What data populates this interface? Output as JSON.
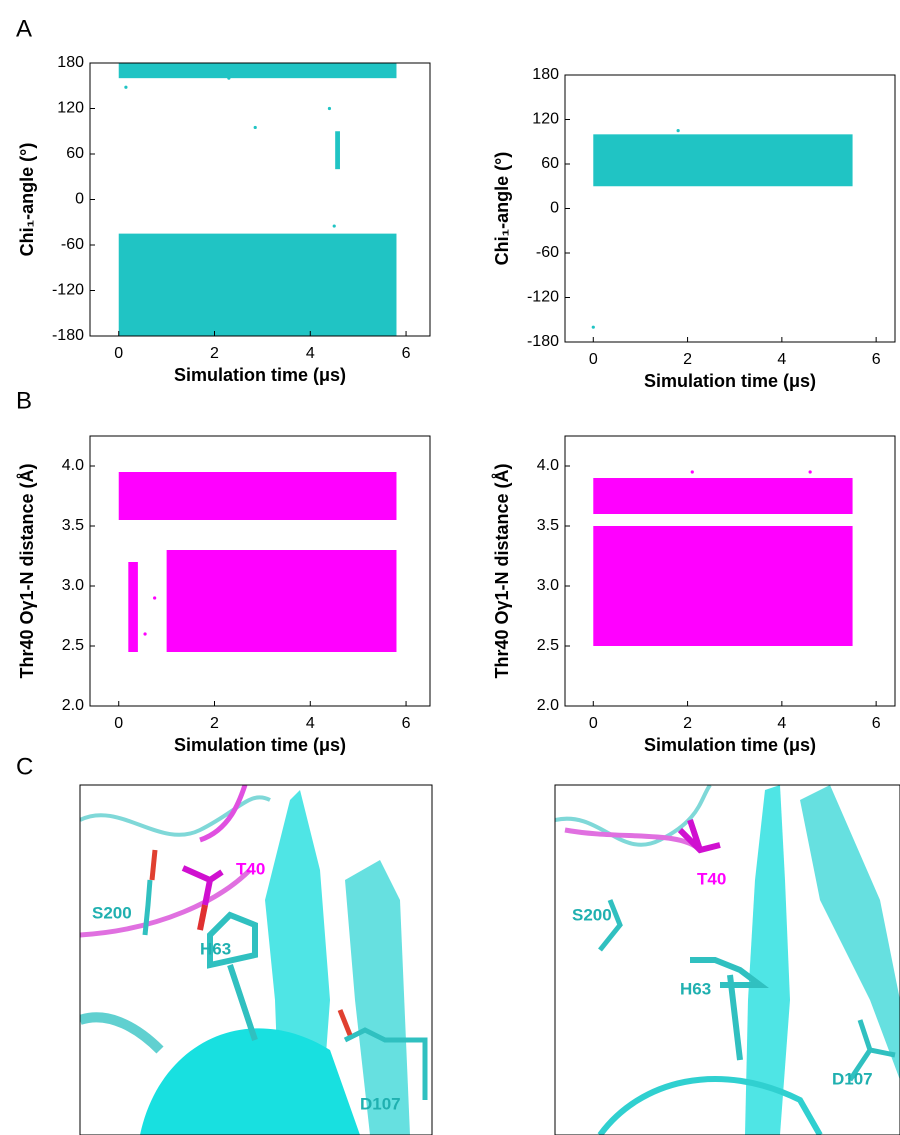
{
  "panels": [
    "A",
    "B",
    "C"
  ],
  "chart_data": [
    {
      "type": "scatter",
      "color": "#20c4c4",
      "xlabel": "Simulation time (μs)",
      "ylabel": "Chi₁-angle (°)",
      "xlim": [
        -0.6,
        6.5
      ],
      "xticks": [
        0,
        2,
        4,
        6
      ],
      "ylim": [
        -180,
        180
      ],
      "yticks": [
        -180,
        -120,
        -60,
        0,
        60,
        120,
        180
      ],
      "regions": [
        {
          "x": [
            0,
            5.8
          ],
          "y": [
            -180,
            -45
          ]
        },
        {
          "x": [
            0,
            5.8
          ],
          "y": [
            160,
            180
          ]
        },
        {
          "x": [
            4.52,
            4.62
          ],
          "y": [
            40,
            90
          ]
        }
      ],
      "points": {
        "x": [
          0.15,
          2.85,
          4.4,
          4.5,
          2.3
        ],
        "y": [
          148,
          95,
          120,
          -35,
          160
        ]
      }
    },
    {
      "type": "scatter",
      "color": "#20c4c4",
      "xlabel": "Simulation time (μs)",
      "ylabel": "Chi₁-angle (°)",
      "xlim": [
        -0.6,
        6.4
      ],
      "xticks": [
        0,
        2,
        4,
        6
      ],
      "ylim": [
        -180,
        180
      ],
      "yticks": [
        -180,
        -120,
        -60,
        0,
        60,
        120,
        180
      ],
      "regions": [
        {
          "x": [
            0,
            5.5
          ],
          "y": [
            30,
            100
          ]
        }
      ],
      "points": {
        "x": [
          0,
          1.8
        ],
        "y": [
          -160,
          105
        ]
      }
    },
    {
      "type": "scatter",
      "color": "#ff00ff",
      "xlabel": "Simulation time (μs)",
      "ylabel": "Thr40 Oγ1-N distance (Å)",
      "xlim": [
        -0.6,
        6.5
      ],
      "xticks": [
        0,
        2,
        4,
        6
      ],
      "ylim": [
        2.0,
        4.25
      ],
      "yticks": [
        {
          "value": 2,
          "label": "2.0"
        },
        2.5,
        {
          "value": 3,
          "label": "3.0"
        },
        3.5,
        {
          "value": 4,
          "label": "4.0"
        }
      ],
      "regions": [
        {
          "x": [
            0,
            5.8
          ],
          "y": [
            3.55,
            3.95
          ]
        },
        {
          "x": [
            1.0,
            5.8
          ],
          "y": [
            2.45,
            3.3
          ]
        },
        {
          "x": [
            0.2,
            0.4
          ],
          "y": [
            2.45,
            3.2
          ]
        }
      ],
      "points": {
        "x": [
          0.55,
          0.75
        ],
        "y": [
          2.6,
          2.9
        ]
      }
    },
    {
      "type": "scatter",
      "color": "#ff00ff",
      "xlabel": "Simulation time (μs)",
      "ylabel": "Thr40 Oγ1-N distance (Å)",
      "xlim": [
        -0.6,
        6.4
      ],
      "xticks": [
        0,
        2,
        4,
        6
      ],
      "ylim": [
        2.0,
        4.25
      ],
      "yticks": [
        {
          "value": 2,
          "label": "2.0"
        },
        2.5,
        {
          "value": 3,
          "label": "3.0"
        },
        3.5,
        {
          "value": 4,
          "label": "4.0"
        }
      ],
      "regions": [
        {
          "x": [
            0,
            5.5
          ],
          "y": [
            2.5,
            3.5
          ]
        },
        {
          "x": [
            0,
            5.5
          ],
          "y": [
            3.6,
            3.9
          ]
        }
      ],
      "points": {
        "x": [
          2.1,
          4.6
        ],
        "y": [
          3.95,
          3.95
        ]
      }
    }
  ],
  "structures": [
    {
      "labels": [
        "T40",
        "S200",
        "H63",
        "D107"
      ]
    },
    {
      "labels": [
        "T40",
        "S200",
        "H63",
        "D107"
      ]
    }
  ]
}
